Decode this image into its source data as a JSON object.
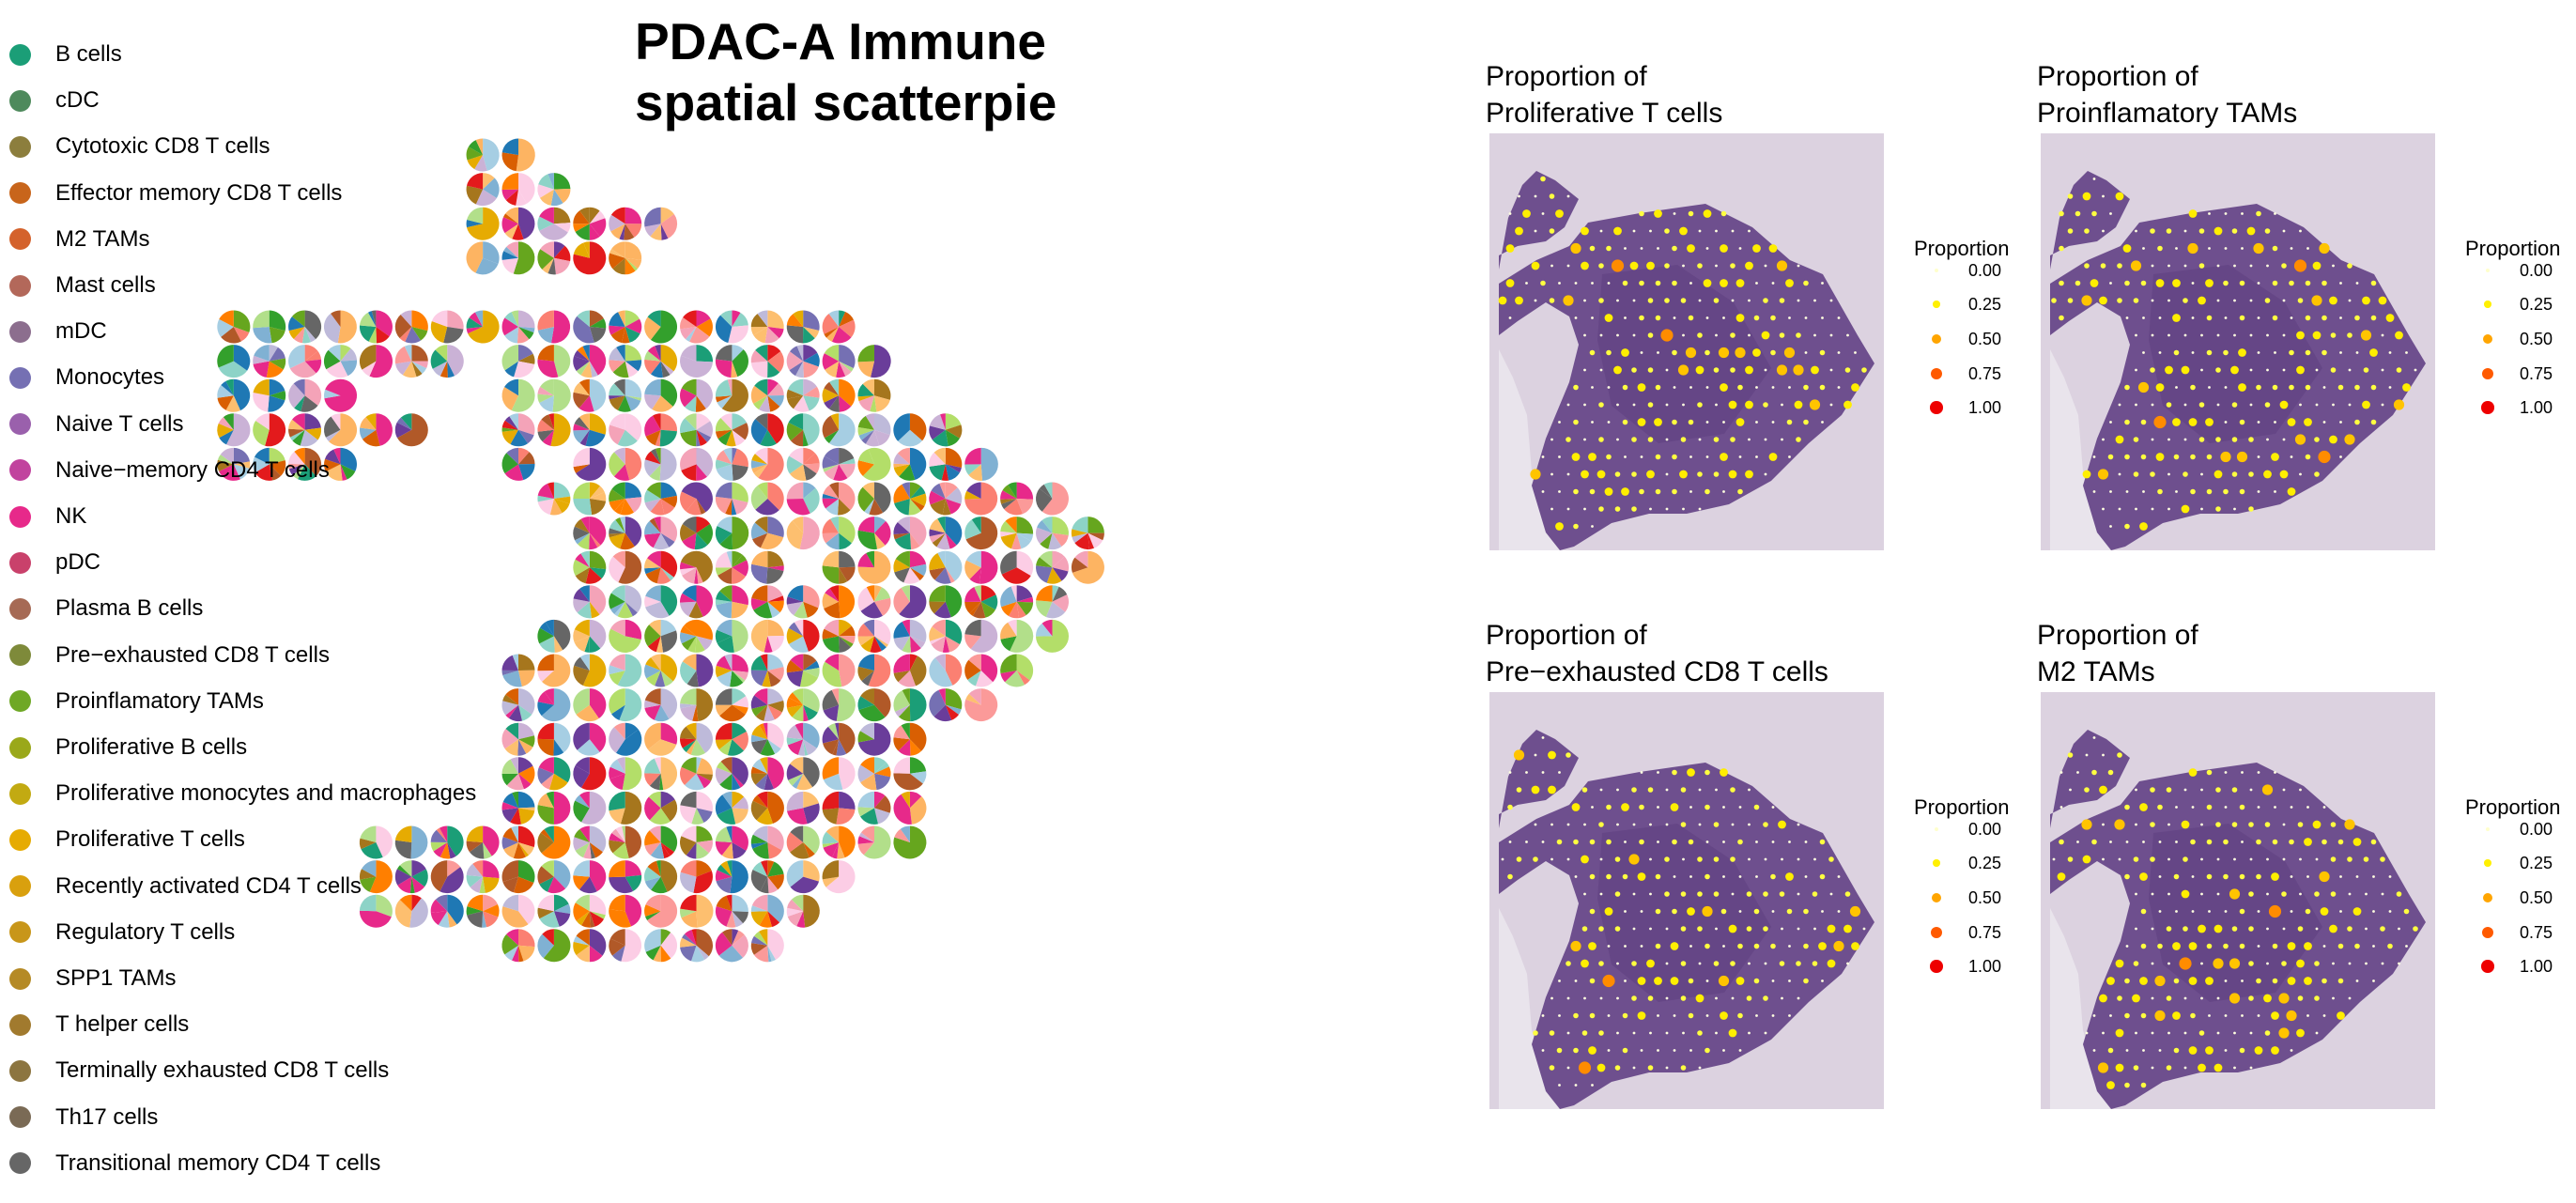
{
  "figure": {
    "title_line1": "PDAC-A Immune",
    "title_line2": "spatial scatterpie"
  },
  "legend": {
    "items": [
      {
        "label": "B cells",
        "color": "#1B9E77"
      },
      {
        "label": "cDC",
        "color": "#4E8A5C"
      },
      {
        "label": "Cytotoxic CD8 T cells",
        "color": "#8C7E3D"
      },
      {
        "label": "Effector memory CD8 T cells",
        "color": "#C8651B"
      },
      {
        "label": "M2 TAMs",
        "color": "#D4622C"
      },
      {
        "label": "Mast cells",
        "color": "#B3685A"
      },
      {
        "label": "mDC",
        "color": "#8C6E8E"
      },
      {
        "label": "Monocytes",
        "color": "#7570B3"
      },
      {
        "label": "Naive T cells",
        "color": "#9A60AC"
      },
      {
        "label": "Naive−memory CD4 T cells",
        "color": "#C1439E"
      },
      {
        "label": "NK",
        "color": "#E7298A"
      },
      {
        "label": "pDC",
        "color": "#C9416B"
      },
      {
        "label": "Plasma B cells",
        "color": "#A66A55"
      },
      {
        "label": "Pre−exhausted CD8 T cells",
        "color": "#7E8A3A"
      },
      {
        "label": "Proinflamatory TAMs",
        "color": "#6FA826"
      },
      {
        "label": "Proliferative B cells",
        "color": "#9AA81A"
      },
      {
        "label": "Proliferative monocytes and macrophages",
        "color": "#C2AA12"
      },
      {
        "label": "Proliferative T cells",
        "color": "#E6AB02"
      },
      {
        "label": "Recently activated CD4 T cells",
        "color": "#D9A00E"
      },
      {
        "label": "Regulatory T cells",
        "color": "#C8961A"
      },
      {
        "label": "SPP1 TAMs",
        "color": "#B58A25"
      },
      {
        "label": "T helper cells",
        "color": "#A17A2E"
      },
      {
        "label": "Terminally exhausted CD8 T cells",
        "color": "#8C7540"
      },
      {
        "label": "Th17 cells",
        "color": "#7A6A55"
      },
      {
        "label": "Transitional memory CD4 T cells",
        "color": "#666666"
      }
    ]
  },
  "panels": [
    {
      "title_line1": "Proportion of",
      "title_line2": "Proliferative T cells"
    },
    {
      "title_line1": "Proportion of",
      "title_line2": "Proinflamatory TAMs"
    },
    {
      "title_line1": "Proportion of",
      "title_line2": "Pre−exhausted CD8 T cells"
    },
    {
      "title_line1": "Proportion of",
      "title_line2": "M2 TAMs"
    }
  ],
  "proportion_legend": {
    "title": "Proportion",
    "items": [
      {
        "label": "0.00",
        "color": "#FFFFCC"
      },
      {
        "label": "0.25",
        "color": "#FFF000"
      },
      {
        "label": "0.50",
        "color": "#FFA500"
      },
      {
        "label": "0.75",
        "color": "#FF5A00"
      },
      {
        "label": "1.00",
        "color": "#EE0000"
      }
    ]
  },
  "chart_data": [
    {
      "type": "scatterpie",
      "title": "PDAC-A Immune spatial scatterpie",
      "legend_title": "",
      "legend_position": "left",
      "series_from": "legend.items"
    },
    {
      "type": "scatter",
      "title": "Proportion of Proliferative T cells",
      "color_scale": "proportion",
      "scale_range": [
        0,
        1
      ],
      "background": "H&E tissue image"
    },
    {
      "type": "scatter",
      "title": "Proportion of Proinflamatory TAMs",
      "color_scale": "proportion",
      "scale_range": [
        0,
        1
      ],
      "background": "H&E tissue image"
    },
    {
      "type": "scatter",
      "title": "Proportion of Pre−exhausted CD8 T cells",
      "color_scale": "proportion",
      "scale_range": [
        0,
        1
      ],
      "background": "H&E tissue image"
    },
    {
      "type": "scatter",
      "title": "Proportion of M2 TAMs",
      "color_scale": "proportion",
      "scale_range": [
        0,
        1
      ],
      "background": "H&E tissue image"
    }
  ]
}
